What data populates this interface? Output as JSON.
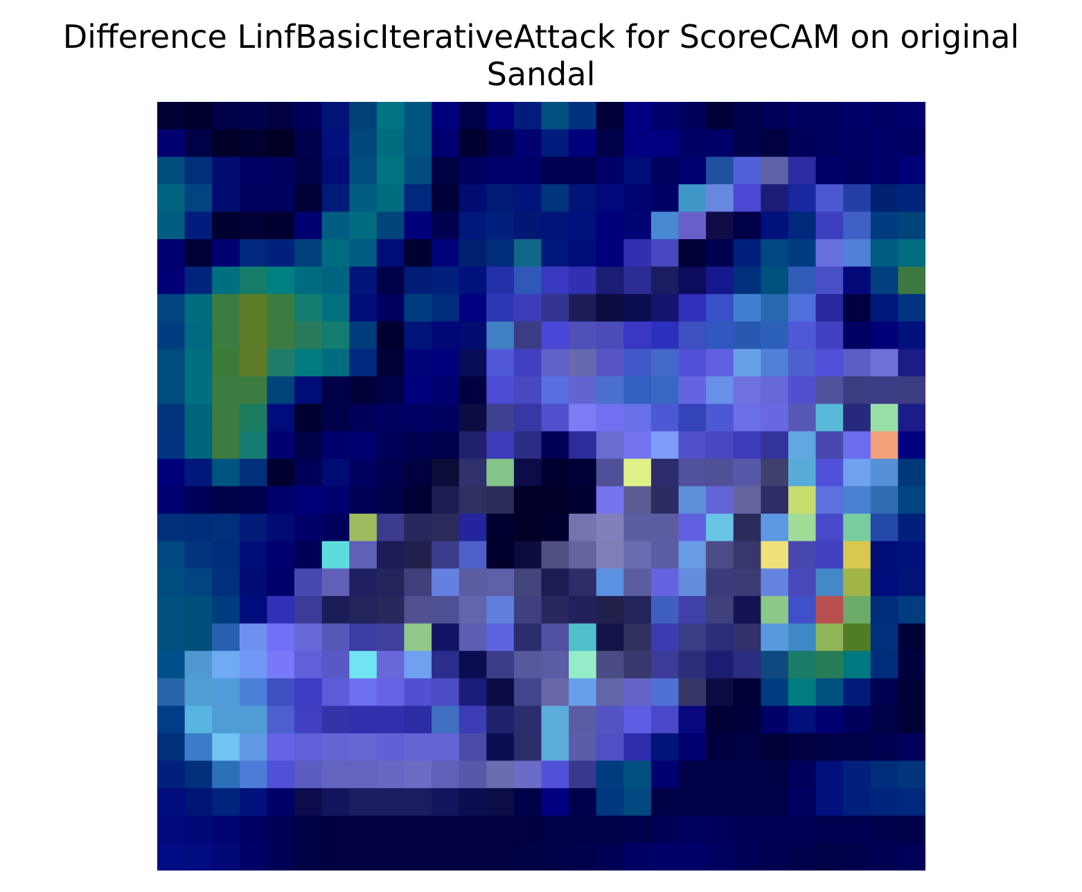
{
  "chart_data": {
    "type": "heatmap",
    "title_line1": "Difference LinfBasicIterativeAttack for ScoreCAM on original",
    "title_line2": "Sandal",
    "rows": 28,
    "cols": 28,
    "axes": "off",
    "colors_row_major": [
      "#000034",
      "#00002c",
      "#000048",
      "#00004c",
      "#000040",
      "#00005c",
      "#001478",
      "#004078",
      "#007480",
      "#005480",
      "#00007c",
      "#000048",
      "#000080",
      "#001c7c",
      "#005080",
      "#003080",
      "#000038",
      "#000080",
      "#00006c",
      "#00005c",
      "#000038",
      "#00004c",
      "#000058",
      "#000060",
      "#000060",
      "#000068",
      "#000064",
      "#00006c",
      "#000070",
      "#000048",
      "#000028",
      "#000030",
      "#000024",
      "#00004c",
      "#00107c",
      "#00487c",
      "#006c80",
      "#005480",
      "#000070",
      "#000030",
      "#000050",
      "#000070",
      "#001c7c",
      "#00007c",
      "#000048",
      "#000080",
      "#000080",
      "#000064",
      "#000068",
      "#00004c",
      "#000040",
      "#000058",
      "#000060",
      "#000064",
      "#000068",
      "#000064",
      "#004c7c",
      "#00307c",
      "#000c70",
      "#000064",
      "#000060",
      "#000048",
      "#000c78",
      "#004c7c",
      "#007480",
      "#004c80",
      "#000044",
      "#000060",
      "#00006c",
      "#00006c",
      "#000050",
      "#000050",
      "#000068",
      "#000c78",
      "#000060",
      "#000070",
      "#2050a0",
      "#5060d8",
      "#6060a8",
      "#2c2ca0",
      "#000068",
      "#000060",
      "#000068",
      "#000078",
      "#006480",
      "#004480",
      "#000c70",
      "#000060",
      "#000060",
      "#000038",
      "#001c78",
      "#005c80",
      "#006c80",
      "#00287c",
      "#000038",
      "#000c70",
      "#001c74",
      "#00147c",
      "#00347c",
      "#001478",
      "#00087c",
      "#000470",
      "#000064",
      "#4098c8",
      "#6888e0",
      "#4c48d4",
      "#1c1c78",
      "#1828a0",
      "#4c58d0",
      "#2440a8",
      "#002070",
      "#00247c",
      "#005c80",
      "#001c7c",
      "#000030",
      "#000034",
      "#000030",
      "#000070",
      "#005c80",
      "#006c80",
      "#00447c",
      "#00007c",
      "#000050",
      "#00187c",
      "#00207c",
      "#001874",
      "#00147c",
      "#00107c",
      "#000078",
      "#000474",
      "#4888d0",
      "#6860c8",
      "#100c48",
      "#000048",
      "#00107c",
      "#00287c",
      "#3c40c0",
      "#4060c8",
      "#003c80",
      "#00447c",
      "#000070",
      "#000038",
      "#000070",
      "#00287c",
      "#00207c",
      "#00407c",
      "#006c80",
      "#005c80",
      "#000c78",
      "#000030",
      "#000478",
      "#002070",
      "#002c7c",
      "#106888",
      "#00187c",
      "#000c78",
      "#00007c",
      "#3030b0",
      "#4848c0",
      "#000034",
      "#000050",
      "#00207c",
      "#004880",
      "#003c80",
      "#6870e0",
      "#5080d8",
      "#005c80",
      "#006c80",
      "#000074",
      "#00247c",
      "#007080",
      "#147c68",
      "#008080",
      "#006c80",
      "#006480",
      "#00147c",
      "#000048",
      "#001c74",
      "#00207c",
      "#00107c",
      "#2430a8",
      "#3058b8",
      "#3838c0",
      "#3030b0",
      "#1c1c74",
      "#2c2c94",
      "#1c1c60",
      "#0c0c5c",
      "#14188c",
      "#00307c",
      "#005080",
      "#305cb8",
      "#4850c8",
      "#040878",
      "#004080",
      "#3c7840",
      "#004480",
      "#006c80",
      "#3c7c40",
      "#5c7c28",
      "#3c7c40",
      "#147c70",
      "#007080",
      "#000c78",
      "#000060",
      "#003c80",
      "#002c7c",
      "#000080",
      "#2c38b4",
      "#3c3cb8",
      "#343490",
      "#1c1c58",
      "#0c0c40",
      "#0c0c50",
      "#141470",
      "#3030bc",
      "#3850c8",
      "#4080d0",
      "#2868b0",
      "#5070dc",
      "#28289c",
      "#000040",
      "#00187c",
      "#003480",
      "#003c80",
      "#006880",
      "#3c7c40",
      "#5c7c28",
      "#3c7c40",
      "#287c5c",
      "#147c70",
      "#003c7c",
      "#000030",
      "#001478",
      "#000878",
      "#000c70",
      "#4080c4",
      "#3c3c84",
      "#4848d8",
      "#5050b8",
      "#4c4cb8",
      "#3838c4",
      "#2c30bc",
      "#3c50c0",
      "#3058c0",
      "#2858b0",
      "#2c60b8",
      "#5058d8",
      "#4040c0",
      "#000064",
      "#000078",
      "#00107c",
      "#004c80",
      "#007080",
      "#3c7c38",
      "#5c7c28",
      "#207c68",
      "#007c80",
      "#006c80",
      "#00287c",
      "#000038",
      "#000478",
      "#00007c",
      "#080c58",
      "#5058d8",
      "#4040c0",
      "#6060c8",
      "#6868b0",
      "#5854c8",
      "#4058c8",
      "#4468c8",
      "#5050d8",
      "#6060e0",
      "#68a0e8",
      "#5080d8",
      "#4c60d0",
      "#5050d8",
      "#5c5cc4",
      "#7070d8",
      "#1c1c84",
      "#004c80",
      "#007080",
      "#3c7c40",
      "#3c7c40",
      "#00447c",
      "#000c78",
      "#000048",
      "#000038",
      "#000048",
      "#00007c",
      "#000070",
      "#000040",
      "#4c4cd4",
      "#4848c0",
      "#5870e0",
      "#6464d0",
      "#4c70d0",
      "#3060c0",
      "#3868c4",
      "#6464e0",
      "#6890e8",
      "#7070e0",
      "#6868d8",
      "#5050d0",
      "#50509c",
      "#3c3c80",
      "#3c3c84",
      "#3c3c80",
      "#00347c",
      "#00647c",
      "#3c7c40",
      "#1c7c60",
      "#000c7c",
      "#000030",
      "#000048",
      "#000058",
      "#000060",
      "#000064",
      "#000060",
      "#0c0c44",
      "#404090",
      "#3838a4",
      "#5050cc",
      "#7c7cf4",
      "#7070f0",
      "#6870e8",
      "#4c58d4",
      "#3444b8",
      "#4c58d4",
      "#6c70e8",
      "#6868e0",
      "#5858b8",
      "#58b8d8",
      "#28287c",
      "#98e0a8",
      "#1c1c88",
      "#003480",
      "#00647c",
      "#3c7c40",
      "#147c70",
      "#000070",
      "#000048",
      "#00006c",
      "#000070",
      "#000058",
      "#000050",
      "#00004c",
      "#20206c",
      "#3c3cb8",
      "#2c2c84",
      "#000054",
      "#2c2c9c",
      "#6c6cd0",
      "#7474f0",
      "#7c9cf8",
      "#5050c8",
      "#4848c0",
      "#3c3cb8",
      "#34349c",
      "#60a8e0",
      "#4848b0",
      "#6c6cf0",
      "#f4a078",
      "#000080",
      "#00007c",
      "#00187c",
      "#005480",
      "#00307c",
      "#000030",
      "#000058",
      "#000c74",
      "#000060",
      "#000050",
      "#000040",
      "#0c0c38",
      "#30306c",
      "#84c488",
      "#0c0c48",
      "#000030",
      "#000038",
      "#505098",
      "#e0f088",
      "#2c2c6c",
      "#50509c",
      "#505094",
      "#5858a8",
      "#40406c",
      "#58acd8",
      "#5050d8",
      "#70a0f0",
      "#5890d8",
      "#00387c",
      "#000070",
      "#000058",
      "#000048",
      "#00004c",
      "#00006c",
      "#000078",
      "#000070",
      "#000054",
      "#000048",
      "#000034",
      "#1c1c54",
      "#303060",
      "#2c2c58",
      "#000028",
      "#000028",
      "#000030",
      "#7474ec",
      "#5c5c94",
      "#2c2c60",
      "#5c90d8",
      "#6464d8",
      "#6464a0",
      "#2c2c68",
      "#c8dc70",
      "#5c70e0",
      "#4a80d0",
      "#306cb0",
      "#004480",
      "#00307c",
      "#002c7c",
      "#00307c",
      "#001c78",
      "#000c74",
      "#000068",
      "#00005c",
      "#a0bc60",
      "#3c3c8c",
      "#28285c",
      "#2c2c5c",
      "#24249c",
      "#000030",
      "#000028",
      "#00002c",
      "#7474b0",
      "#8080bc",
      "#5c5ca0",
      "#5c5ca0",
      "#6060e0",
      "#68c4e4",
      "#2c2c5c",
      "#5c98e4",
      "#a0dc98",
      "#4848c8",
      "#78cca0",
      "#2448a8",
      "#00207c",
      "#004880",
      "#00347c",
      "#002c7c",
      "#000c78",
      "#000070",
      "#000054",
      "#5cdcdc",
      "#6060b8",
      "#1c1c58",
      "#20204c",
      "#3c3c8c",
      "#4c60c8",
      "#00002c",
      "#0c0c3c",
      "#505080",
      "#6464a0",
      "#8080b8",
      "#6c6cb0",
      "#5c5ca4",
      "#689ce4",
      "#4c4c88",
      "#38386c",
      "#f0e078",
      "#4848b0",
      "#4040c0",
      "#d8c850",
      "#000c78",
      "#00107c",
      "#004c80",
      "#004480",
      "#00307c",
      "#000c74",
      "#00006c",
      "#4848b0",
      "#6060b8",
      "#202060",
      "#24245c",
      "#40407c",
      "#6480e0",
      "#5c5ca0",
      "#6060a8",
      "#44447c",
      "#1c1c54",
      "#2c2c68",
      "#5c90e0",
      "#5c5ca0",
      "#6464e0",
      "#648cdc",
      "#3c3c7c",
      "#3c3c74",
      "#6484e0",
      "#4848b8",
      "#4488c8",
      "#a0b448",
      "#000c7c",
      "#001478",
      "#005080",
      "#00507c",
      "#003c80",
      "#000c7c",
      "#3030b8",
      "#3c3c98",
      "#1c1c58",
      "#24245c",
      "#28285c",
      "#505090",
      "#505094",
      "#6464ac",
      "#6080dc",
      "#404080",
      "#28285c",
      "#20205c",
      "#20204c",
      "#24245c",
      "#4060c0",
      "#4040a8",
      "#40407c",
      "#141454",
      "#8cc888",
      "#4050c8",
      "#b85050",
      "#6cac68",
      "#002c7c",
      "#003c80",
      "#005080",
      "#00507c",
      "#2860b0",
      "#7090f0",
      "#7070f8",
      "#6868d8",
      "#5858b8",
      "#3c3ca4",
      "#40409c",
      "#90c888",
      "#141464",
      "#5c5cb0",
      "#5c64e0",
      "#2c2c6c",
      "#5050a0",
      "#50c0cc",
      "#141448",
      "#30305c",
      "#3c3cb0",
      "#3c3c84",
      "#2c2c78",
      "#30306c",
      "#5898dc",
      "#4088c4",
      "#90b458",
      "#507c28",
      "#00307c",
      "#000038",
      "#00508c",
      "#5098d0",
      "#70aaf4",
      "#7098f4",
      "#7878f8",
      "#6060d8",
      "#5858c8",
      "#70e4f0",
      "#6868d8",
      "#70a0f0",
      "#2c2c8c",
      "#0c0c50",
      "#3c3c88",
      "#58589c",
      "#5c5ca4",
      "#94ecc8",
      "#4c4c84",
      "#38386c",
      "#3c3c98",
      "#2c2c78",
      "#1c1c70",
      "#2c2c80",
      "#104880",
      "#187c68",
      "#287c58",
      "#007880",
      "#002c7c",
      "#000040",
      "#2864a8",
      "#509cd4",
      "#509cd8",
      "#4c80d8",
      "#3c50c0",
      "#3c3cc4",
      "#5c5cd8",
      "#6c70f0",
      "#6464e4",
      "#5050d0",
      "#4c4cc4",
      "#1c1c7c",
      "#0c0c44",
      "#44448c",
      "#6868a8",
      "#68a0ec",
      "#6464a8",
      "#6464c8",
      "#5070d4",
      "#383868",
      "#0c0c44",
      "#000034",
      "#003c80",
      "#007c80",
      "#005080",
      "#001c78",
      "#000050",
      "#000038",
      "#003c88",
      "#58b4e0",
      "#509cd4",
      "#509cd4",
      "#4c60d0",
      "#4040c0",
      "#3434a8",
      "#3030ac",
      "#3030ac",
      "#2c2ca4",
      "#4070c0",
      "#3c3cb4",
      "#20206c",
      "#2c2c6c",
      "#5cacdc",
      "#5c5ca4",
      "#5454c4",
      "#5c5ce4",
      "#4848c8",
      "#08087c",
      "#000038",
      "#00003c",
      "#000068",
      "#00107c",
      "#000070",
      "#00005c",
      "#000048",
      "#000038",
      "#00307c",
      "#3c7cc8",
      "#70c4f4",
      "#6098e4",
      "#6464e4",
      "#6060d8",
      "#6464d4",
      "#6868d4",
      "#6060d4",
      "#6464d4",
      "#6464d4",
      "#4c4ca8",
      "#0c0c50",
      "#2c2c68",
      "#5cacdc",
      "#5c5caa",
      "#5050c4",
      "#2c2cac",
      "#001478",
      "#000070",
      "#000040",
      "#000044",
      "#000038",
      "#000040",
      "#000044",
      "#000048",
      "#000050",
      "#00005c",
      "#00207c",
      "#00307c",
      "#2c70b8",
      "#4c7cd8",
      "#5050d8",
      "#5c5cc0",
      "#6464c0",
      "#6464c0",
      "#6868c4",
      "#6c6cc4",
      "#6060b8",
      "#5858a8",
      "#6c6cb0",
      "#6c6cc8",
      "#5050d8",
      "#38388c",
      "#003c80",
      "#005080",
      "#000070",
      "#000048",
      "#000048",
      "#000048",
      "#000044",
      "#00005c",
      "#00107c",
      "#00207c",
      "#002c7c",
      "#00347c",
      "#000c7c",
      "#001474",
      "#00247c",
      "#00107c",
      "#000068",
      "#0c0c4c",
      "#14145c",
      "#1c1c60",
      "#1c1c60",
      "#1c1c60",
      "#14145c",
      "#0c0c50",
      "#0c0c48",
      "#000048",
      "#000080",
      "#00004c",
      "#003880",
      "#004880",
      "#000044",
      "#000048",
      "#000048",
      "#000048",
      "#000048",
      "#000060",
      "#00107c",
      "#00207c",
      "#00247c",
      "#00287c",
      "#00087c",
      "#000878",
      "#000474",
      "#000064",
      "#000054",
      "#000044",
      "#000040",
      "#000040",
      "#000040",
      "#000040",
      "#000040",
      "#000040",
      "#000040",
      "#000040",
      "#000048",
      "#000048",
      "#000048",
      "#00004c",
      "#000054",
      "#000060",
      "#00005c",
      "#000054",
      "#000054",
      "#000054",
      "#000050",
      "#000050",
      "#00004c",
      "#000048",
      "#000c84",
      "#000c80",
      "#000878",
      "#000068",
      "#000054",
      "#000044",
      "#000040",
      "#000040",
      "#000040",
      "#000040",
      "#000040",
      "#000040",
      "#000040",
      "#000044",
      "#000048",
      "#00004c",
      "#000054",
      "#000064",
      "#000068",
      "#000068",
      "#000060",
      "#000054",
      "#000050",
      "#00004c",
      "#000048",
      "#00004c",
      "#000050",
      "#000058"
    ]
  }
}
